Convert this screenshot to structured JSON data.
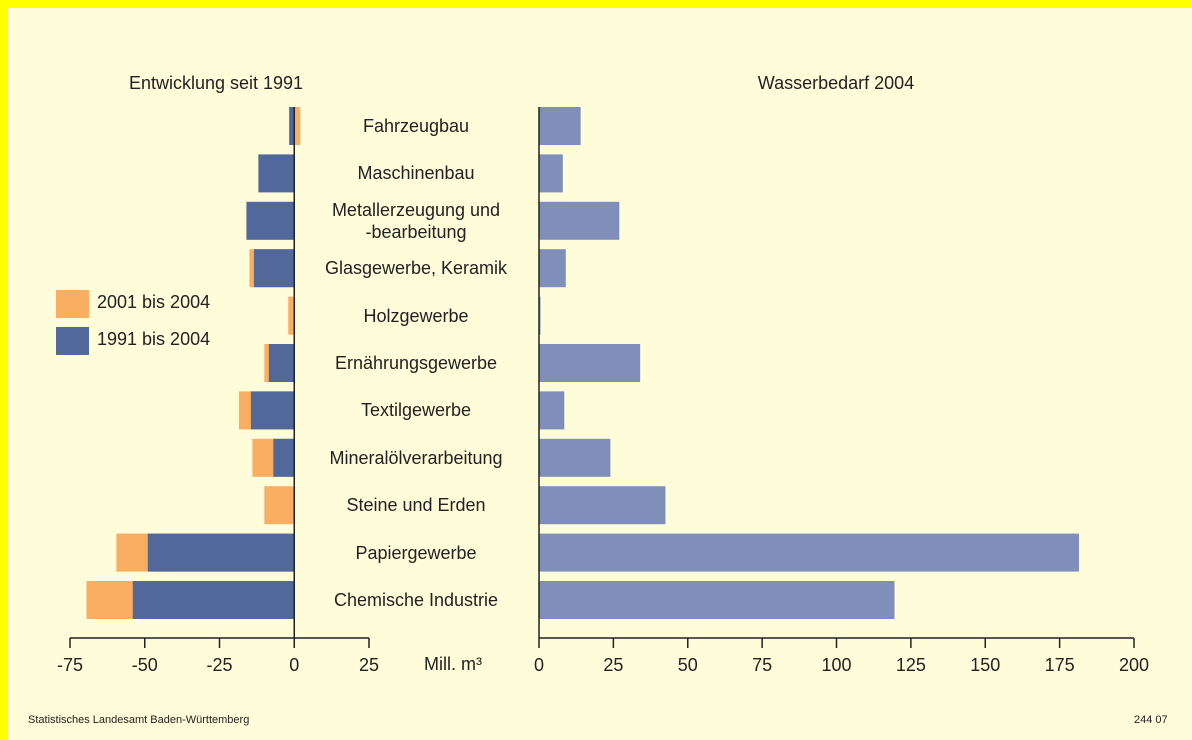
{
  "chart_data": [
    {
      "type": "bar",
      "orientation": "horizontal",
      "title": "Entwicklung seit 1991",
      "xlabel": "Mill. m³",
      "categories": [
        "Fahrzeugbau",
        "Maschinenbau",
        "Metallerzeugung und\n-bearbeitung",
        "Glasgewerbe, Keramik",
        "Holzgewerbe",
        "Ernährungsgewerbe",
        "Textilgewerbe",
        "Mineralölverarbeitung",
        "Steine und Erden",
        "Papiergewerbe",
        "Chemische Industrie"
      ],
      "series": [
        {
          "name": "2001 bis 2004",
          "color": "#f9ae61",
          "values": [
            2,
            null,
            null,
            -15,
            -2,
            -10,
            -18.5,
            -14,
            -10,
            -59.5,
            -69.5
          ]
        },
        {
          "name": "1991 bis 2004",
          "color": "#52689b",
          "values": [
            -1.7,
            -12,
            -16,
            -13.5,
            null,
            -8.5,
            -14.5,
            -7,
            null,
            -49,
            -54
          ]
        }
      ],
      "xlim": [
        -75,
        25
      ],
      "xticks": [
        -75,
        -50,
        -25,
        0,
        25
      ]
    },
    {
      "type": "bar",
      "orientation": "horizontal",
      "title": "Wasserbedarf 2004",
      "color": "#7f8fba",
      "values": [
        14,
        8,
        27,
        9,
        0.5,
        34,
        8.5,
        24,
        42.5,
        181.5,
        119.5
      ],
      "xlim": [
        0,
        200
      ],
      "xticks": [
        0,
        25,
        50,
        75,
        100,
        125,
        150,
        175,
        200
      ]
    }
  ],
  "footer": {
    "source": "Statistisches Landesamt Baden-Württemberg",
    "code": "244 07"
  }
}
